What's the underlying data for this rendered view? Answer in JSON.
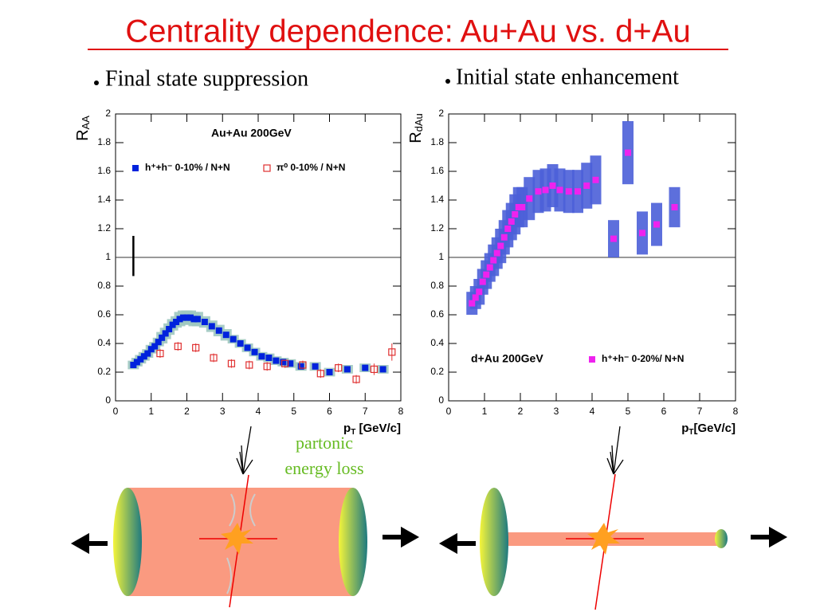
{
  "slide": {
    "title": "Centrality dependence: Au+Au vs. d+Au",
    "bullets": [
      "Final state suppression",
      "Initial state enhancement"
    ],
    "annotation": [
      "partonic",
      "energy loss"
    ]
  },
  "chart_data": [
    {
      "type": "scatter",
      "title": "Au+Au 200GeV",
      "y_label": {
        "text": "R",
        "sub": "AA"
      },
      "x_label": {
        "text": "p",
        "sub": "T",
        "rest": " [GeV/c]"
      },
      "xlim": [
        0,
        8
      ],
      "ylim": [
        0,
        2
      ],
      "xticks": [
        0,
        1,
        2,
        3,
        4,
        5,
        6,
        7,
        8
      ],
      "yticks": [
        0,
        0.2,
        0.4,
        0.6,
        0.8,
        1,
        1.2,
        1.4,
        1.6,
        1.8,
        2
      ],
      "reference_line": 1,
      "normalization_error": {
        "x": 0.5,
        "range": [
          0.87,
          1.15
        ]
      },
      "legend": "upper",
      "series": [
        {
          "name": "h⁺+h⁻ 0-10% / N+N",
          "color": "#0022dd",
          "marker": "filled-square",
          "band_color": "#9fc8c0",
          "x": [
            0.5,
            0.6,
            0.7,
            0.8,
            0.9,
            1.0,
            1.1,
            1.2,
            1.3,
            1.4,
            1.5,
            1.6,
            1.7,
            1.8,
            1.9,
            2.0,
            2.1,
            2.2,
            2.3,
            2.5,
            2.7,
            2.9,
            3.1,
            3.3,
            3.5,
            3.7,
            3.9,
            4.1,
            4.3,
            4.5,
            4.7,
            4.9,
            5.2,
            5.6,
            6.0,
            6.5,
            7.0,
            7.5
          ],
          "values": [
            0.25,
            0.27,
            0.29,
            0.31,
            0.33,
            0.36,
            0.38,
            0.41,
            0.44,
            0.47,
            0.5,
            0.53,
            0.55,
            0.57,
            0.58,
            0.58,
            0.58,
            0.57,
            0.57,
            0.55,
            0.52,
            0.49,
            0.46,
            0.43,
            0.4,
            0.37,
            0.34,
            0.31,
            0.3,
            0.28,
            0.27,
            0.26,
            0.24,
            0.24,
            0.2,
            0.22,
            0.23,
            0.22
          ],
          "errors": [
            0.03,
            0.03,
            0.03,
            0.03,
            0.03,
            0.03,
            0.03,
            0.03,
            0.04,
            0.04,
            0.04,
            0.04,
            0.04,
            0.05,
            0.05,
            0.05,
            0.05,
            0.05,
            0.05,
            0.04,
            0.04,
            0.04,
            0.04,
            0.03,
            0.03,
            0.03,
            0.03,
            0.03,
            0.03,
            0.03,
            0.03,
            0.03,
            0.03,
            0.03,
            0.03,
            0.03,
            0.03,
            0.03
          ]
        },
        {
          "name": "π⁰ 0-10% / N+N",
          "color": "#e03030",
          "marker": "open-square",
          "x": [
            1.25,
            1.75,
            2.25,
            2.75,
            3.25,
            3.75,
            4.25,
            4.75,
            5.25,
            5.75,
            6.25,
            6.75,
            7.25,
            7.75
          ],
          "values": [
            0.33,
            0.38,
            0.37,
            0.3,
            0.26,
            0.25,
            0.24,
            0.26,
            0.25,
            0.19,
            0.23,
            0.15,
            0.22,
            0.34
          ],
          "errors": [
            0.03,
            0.03,
            0.03,
            0.03,
            0.03,
            0.03,
            0.03,
            0.03,
            0.03,
            0.03,
            0.03,
            0.03,
            0.04,
            0.06
          ]
        }
      ]
    },
    {
      "type": "scatter",
      "title": "d+Au 200GeV",
      "y_label": {
        "text": "R",
        "sub": "dAu"
      },
      "x_label": {
        "text": "p",
        "sub": "T",
        "rest": "[GeV/c]"
      },
      "xlim": [
        0,
        8
      ],
      "ylim": [
        0,
        2
      ],
      "xticks": [
        0,
        1,
        2,
        3,
        4,
        5,
        6,
        7,
        8
      ],
      "yticks": [
        0,
        0.2,
        0.4,
        0.6,
        0.8,
        1,
        1.2,
        1.4,
        1.6,
        1.8,
        2
      ],
      "reference_line": 1,
      "legend": "lower",
      "series": [
        {
          "name": "h⁺+h⁻ 0-20%/ N+N",
          "color": "#ee22ee",
          "marker": "filled-square",
          "band_color": "#4b5fd8",
          "x": [
            0.65,
            0.75,
            0.85,
            0.95,
            1.05,
            1.15,
            1.25,
            1.35,
            1.45,
            1.55,
            1.65,
            1.75,
            1.85,
            1.95,
            2.05,
            2.25,
            2.5,
            2.7,
            2.9,
            3.1,
            3.35,
            3.6,
            3.85,
            4.1,
            4.6,
            5.0,
            5.4,
            5.8,
            6.3
          ],
          "values": [
            0.68,
            0.72,
            0.76,
            0.83,
            0.88,
            0.93,
            0.98,
            1.03,
            1.08,
            1.14,
            1.2,
            1.25,
            1.3,
            1.35,
            1.35,
            1.41,
            1.46,
            1.47,
            1.5,
            1.47,
            1.46,
            1.46,
            1.5,
            1.54,
            1.13,
            1.73,
            1.17,
            1.23,
            1.35
          ],
          "errors": [
            0.08,
            0.08,
            0.09,
            0.09,
            0.1,
            0.1,
            0.11,
            0.11,
            0.12,
            0.12,
            0.13,
            0.13,
            0.14,
            0.14,
            0.14,
            0.15,
            0.15,
            0.15,
            0.15,
            0.15,
            0.15,
            0.15,
            0.16,
            0.17,
            0.13,
            0.22,
            0.15,
            0.15,
            0.14
          ]
        }
      ]
    }
  ]
}
